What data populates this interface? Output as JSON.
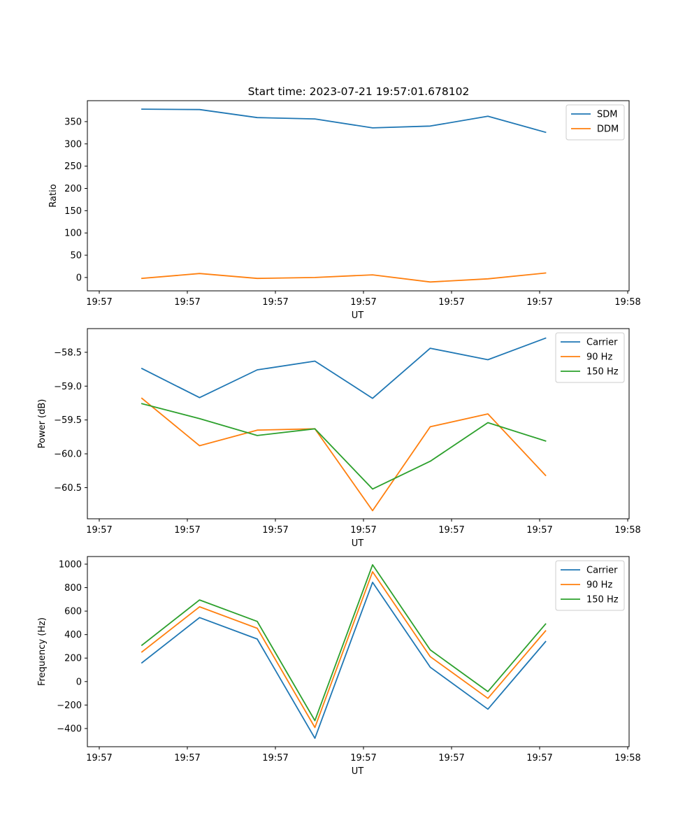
{
  "chart_data": [
    {
      "type": "line",
      "title": "Start time: 2023-07-21 19:57:01.678102",
      "xlabel": "UT",
      "ylabel": "Ratio",
      "x_tick_labels": [
        "19:57",
        "19:57",
        "19:57",
        "19:57",
        "19:57",
        "19:57",
        "19:58"
      ],
      "yticks": [
        0,
        50,
        100,
        150,
        200,
        250,
        300,
        350
      ],
      "ylim": [
        -30,
        397
      ],
      "legend_position": "top-right",
      "series": [
        {
          "name": "SDM",
          "color": "#1f77b4",
          "values": [
            378,
            377,
            359,
            356,
            336,
            340,
            362,
            326
          ]
        },
        {
          "name": "DDM",
          "color": "#ff7f0e",
          "values": [
            -2,
            9,
            -2,
            0,
            6,
            -10,
            -3,
            10
          ]
        }
      ]
    },
    {
      "type": "line",
      "title": "",
      "xlabel": "UT",
      "ylabel": "Power (dB)",
      "x_tick_labels": [
        "19:57",
        "19:57",
        "19:57",
        "19:57",
        "19:57",
        "19:57",
        "19:58"
      ],
      "yticks": [
        -60.5,
        -60.0,
        -59.5,
        -59.0,
        -58.5
      ],
      "ytick_labels": [
        "−60.5",
        "−60.0",
        "−59.5",
        "−59.0",
        "−58.5"
      ],
      "ylim": [
        -60.96,
        -58.15
      ],
      "legend_position": "top-right",
      "series": [
        {
          "name": "Carrier",
          "color": "#1f77b4",
          "values": [
            -58.74,
            -59.17,
            -58.76,
            -58.63,
            -59.18,
            -58.44,
            -58.61,
            -58.29
          ]
        },
        {
          "name": "90 Hz",
          "color": "#ff7f0e",
          "values": [
            -59.18,
            -59.88,
            -59.65,
            -59.63,
            -60.84,
            -59.6,
            -59.41,
            -60.32
          ]
        },
        {
          "name": "150 Hz",
          "color": "#2ca02c",
          "values": [
            -59.26,
            -59.48,
            -59.73,
            -59.63,
            -60.52,
            -60.11,
            -59.54,
            -59.81
          ]
        }
      ]
    },
    {
      "type": "line",
      "title": "",
      "xlabel": "UT",
      "ylabel": "Frequency (Hz)",
      "x_tick_labels": [
        "19:57",
        "19:57",
        "19:57",
        "19:57",
        "19:57",
        "19:57",
        "19:58"
      ],
      "yticks": [
        -400,
        -200,
        0,
        200,
        400,
        600,
        800,
        1000
      ],
      "ytick_labels": [
        "−400",
        "−200",
        "0",
        "200",
        "400",
        "600",
        "800",
        "1000"
      ],
      "ylim": [
        -555,
        1065
      ],
      "legend_position": "top-right",
      "series": [
        {
          "name": "Carrier",
          "color": "#1f77b4",
          "values": [
            160,
            545,
            362,
            -483,
            845,
            122,
            -235,
            340
          ]
        },
        {
          "name": "90 Hz",
          "color": "#ff7f0e",
          "values": [
            252,
            637,
            454,
            -391,
            935,
            212,
            -143,
            432
          ]
        },
        {
          "name": "150 Hz",
          "color": "#2ca02c",
          "values": [
            310,
            695,
            512,
            -333,
            995,
            270,
            -85,
            490
          ]
        }
      ]
    }
  ]
}
